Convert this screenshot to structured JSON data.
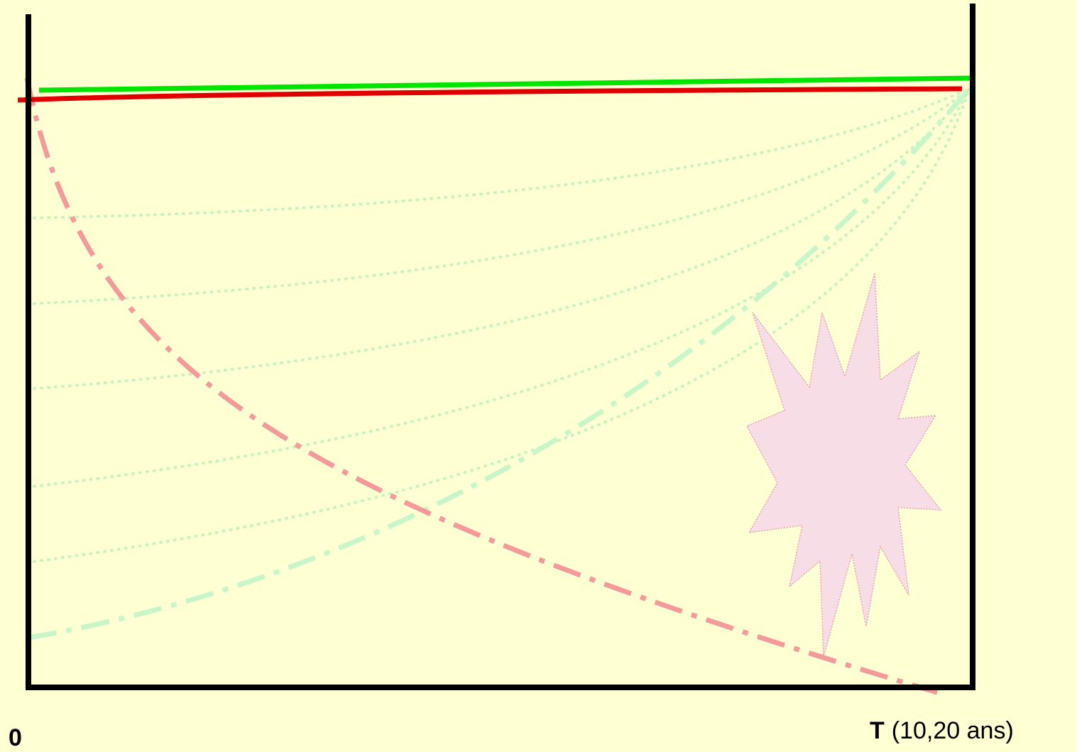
{
  "labels": {
    "origin": "0",
    "end_symbol": "T",
    "end_note": "(10,20 ans)"
  }
}
